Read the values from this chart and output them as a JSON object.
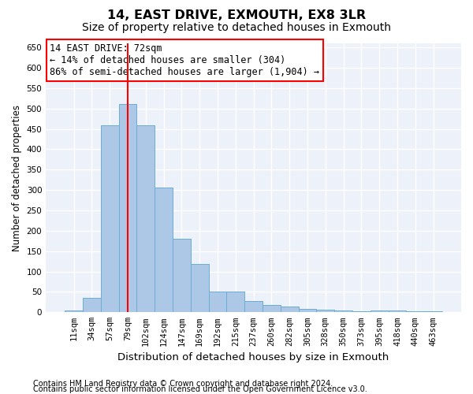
{
  "title1": "14, EAST DRIVE, EXMOUTH, EX8 3LR",
  "title2": "Size of property relative to detached houses in Exmouth",
  "xlabel": "Distribution of detached houses by size in Exmouth",
  "ylabel": "Number of detached properties",
  "categories": [
    "11sqm",
    "34sqm",
    "57sqm",
    "79sqm",
    "102sqm",
    "124sqm",
    "147sqm",
    "169sqm",
    "192sqm",
    "215sqm",
    "237sqm",
    "260sqm",
    "282sqm",
    "305sqm",
    "328sqm",
    "350sqm",
    "373sqm",
    "395sqm",
    "418sqm",
    "440sqm",
    "463sqm"
  ],
  "values": [
    5,
    35,
    458,
    512,
    458,
    307,
    180,
    118,
    50,
    50,
    28,
    18,
    15,
    8,
    6,
    5,
    3,
    5,
    5,
    3,
    3
  ],
  "bar_color": "#adc8e6",
  "bar_edge_color": "#6aadd5",
  "bar_linewidth": 0.7,
  "vline_x_index": 3,
  "vline_color": "red",
  "vline_linewidth": 1.5,
  "ylim": [
    0,
    660
  ],
  "yticks": [
    0,
    50,
    100,
    150,
    200,
    250,
    300,
    350,
    400,
    450,
    500,
    550,
    600,
    650
  ],
  "annotation_line1": "14 EAST DRIVE: 72sqm",
  "annotation_line2": "← 14% of detached houses are smaller (304)",
  "annotation_line3": "86% of semi-detached houses are larger (1,904) →",
  "annotation_box_edgecolor": "red",
  "annotation_box_facecolor": "white",
  "footnote1": "Contains HM Land Registry data © Crown copyright and database right 2024.",
  "footnote2": "Contains public sector information licensed under the Open Government Licence v3.0.",
  "bg_color": "#edf2fa",
  "grid_color": "white",
  "title1_fontsize": 11.5,
  "title2_fontsize": 10,
  "xlabel_fontsize": 9.5,
  "ylabel_fontsize": 8.5,
  "tick_fontsize": 7.5,
  "annotation_fontsize": 8.5,
  "footnote_fontsize": 7
}
